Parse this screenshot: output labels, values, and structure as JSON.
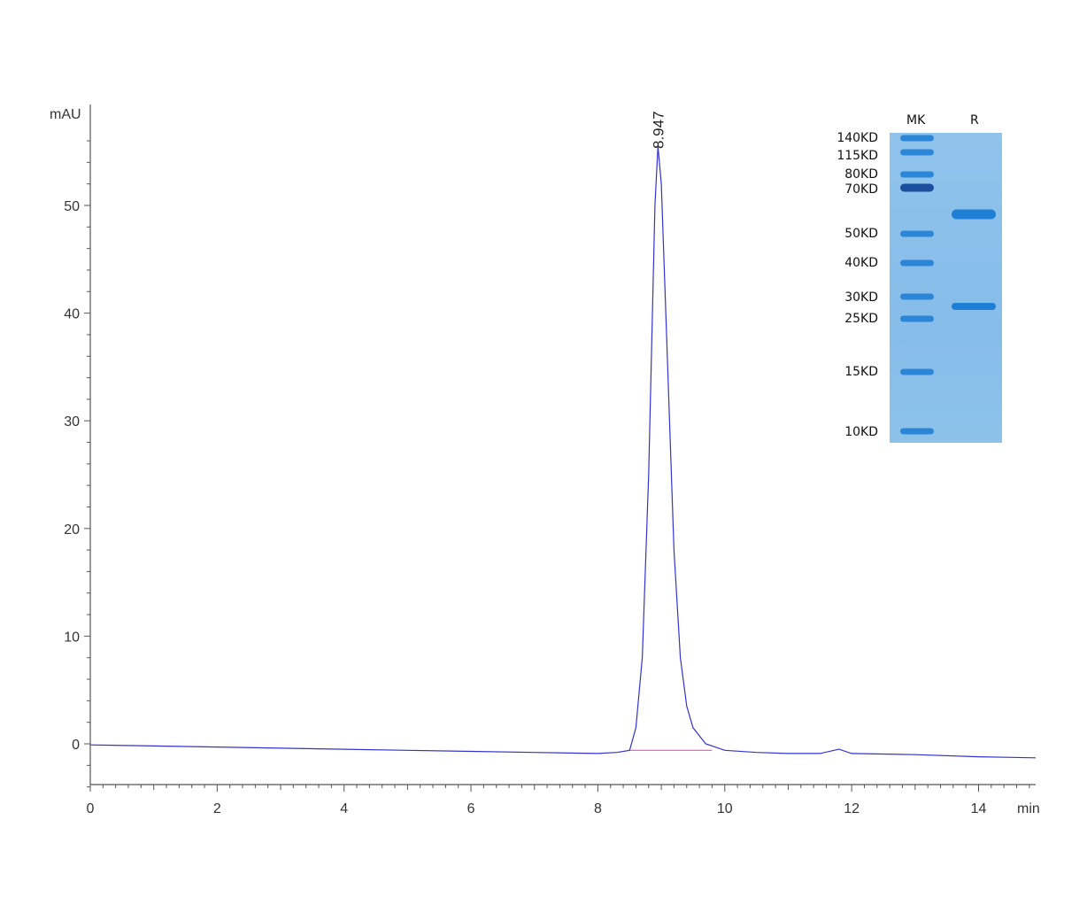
{
  "chart_data": {
    "type": "line",
    "title": "",
    "xlabel": "min",
    "ylabel": "mAU",
    "xlim": [
      0,
      14.9
    ],
    "ylim": [
      -5,
      57
    ],
    "x_ticks": [
      0,
      2,
      4,
      6,
      8,
      10,
      12,
      14
    ],
    "y_ticks": [
      0,
      10,
      20,
      30,
      40,
      50
    ],
    "x_tick_labels": [
      "0",
      "2",
      "4",
      "6",
      "8",
      "10",
      "12",
      "14"
    ],
    "y_tick_labels": [
      "0",
      "10",
      "20",
      "30",
      "40",
      "50"
    ],
    "grid": false,
    "peak": {
      "time": 8.947,
      "height": 55.5,
      "label": "8.947"
    },
    "series": [
      {
        "color": "#3333cc",
        "x": [
          0,
          1,
          2,
          3,
          4,
          5,
          6,
          7,
          8,
          8.3,
          8.5,
          8.6,
          8.7,
          8.8,
          8.9,
          8.947,
          9.0,
          9.1,
          9.2,
          9.3,
          9.4,
          9.5,
          9.7,
          10.0,
          10.5,
          11.0,
          11.5,
          11.8,
          12.0,
          13.0,
          14.0,
          14.9
        ],
        "y": [
          -0.1,
          -0.2,
          -0.3,
          -0.4,
          -0.5,
          -0.6,
          -0.7,
          -0.8,
          -0.9,
          -0.8,
          -0.6,
          1.5,
          8.0,
          25.0,
          50.0,
          55.5,
          52.0,
          35.0,
          18.0,
          8.0,
          3.5,
          1.5,
          0.0,
          -0.6,
          -0.8,
          -0.9,
          -0.9,
          -0.5,
          -0.9,
          -1.0,
          -1.2,
          -1.3
        ]
      }
    ],
    "baseline": {
      "color": "#ff44cc",
      "x": [
        8.5,
        9.8
      ],
      "y": [
        -0.6,
        -0.6
      ]
    }
  },
  "gel": {
    "headers": {
      "marker": "MK",
      "sample": "R"
    },
    "marker_labels": [
      "140KD",
      "115KD",
      "80KD",
      "70KD",
      "50KD",
      "40KD",
      "30KD",
      "25KD",
      "15KD",
      "10KD"
    ],
    "marker_label_y": [
      36,
      56,
      77,
      94,
      144,
      177,
      216,
      240,
      300,
      368
    ],
    "marker_band_y": [
      36,
      52,
      77,
      92,
      144,
      177,
      215,
      240,
      300,
      367
    ],
    "sample_band_y": [
      122,
      226
    ],
    "band_color": "#1e7fd6",
    "marker_band_color": "#2b86d8",
    "dark_band_color": "#1a4f9e",
    "gel_color": "#8fc3ec"
  }
}
